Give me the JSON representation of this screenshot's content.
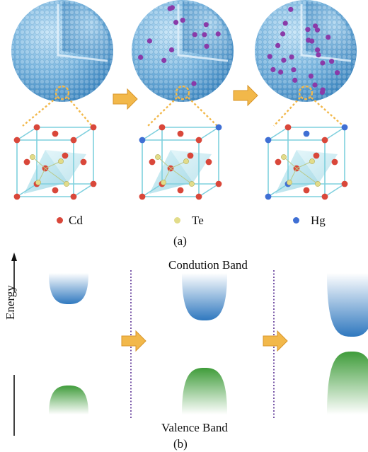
{
  "panel_a": {
    "caption": "(a)",
    "legend": [
      {
        "label": "Cd",
        "color": "#d9473a"
      },
      {
        "label": "Te",
        "color": "#e2dc8a"
      },
      {
        "label": "Hg",
        "color": "#3f6fd4"
      }
    ],
    "stages": 3
  },
  "panel_b": {
    "caption": "(b)",
    "axis_label": "Energy",
    "conduction_label": "Condution Band",
    "valence_label": "Valence Band"
  },
  "colors": {
    "sphere": "#79b6e0",
    "sphere_dark": "#3c86c0",
    "hg_atom": "#8a3aa8",
    "arrow": "#f2b84a",
    "cube_edge": "#7fd0de",
    "conduction_band": "#2f78bf",
    "valence_band": "#3f9c3a",
    "divider": "#7a58a8"
  }
}
